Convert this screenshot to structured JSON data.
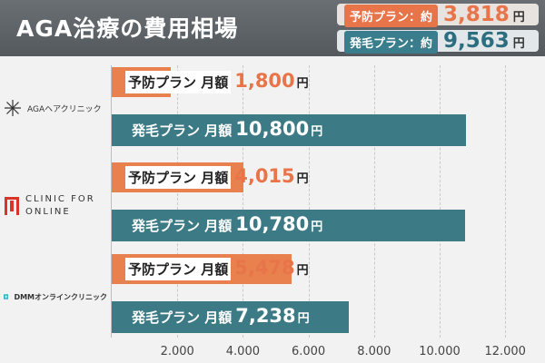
{
  "header": {
    "title": "AGA治療の費用相場",
    "avg_prevent": {
      "label": "予防プラン：約",
      "value": "3,818",
      "unit": "円"
    },
    "avg_hair": {
      "label": "発毛プラン：約",
      "value": "9,563",
      "unit": "円"
    }
  },
  "clinics": [
    {
      "name": "AGAヘアクリニック",
      "logo": [
        "AGAヘアクリニック"
      ]
    },
    {
      "name": "CLINIC FOR ONLINE",
      "logo": [
        "CLINIC FOR",
        "ONLINE"
      ]
    },
    {
      "name": "DMMオンラインクリニック",
      "logo": [
        "DMMオンラインクリニック"
      ]
    }
  ],
  "chart_data": {
    "type": "bar",
    "orientation": "horizontal",
    "categories": [
      "AGAヘアクリニック",
      "CLINIC FOR ONLINE",
      "DMMオンラインクリニック"
    ],
    "series": [
      {
        "name": "予防プラン",
        "values": [
          1800,
          4015,
          5478
        ],
        "labels": [
          "1,800",
          "4,015",
          "5,478"
        ],
        "color": "#e9814f",
        "text_color": "#e8744a",
        "plan_label": "予防プラン 月額"
      },
      {
        "name": "発毛プラン",
        "values": [
          10800,
          10780,
          7238
        ],
        "labels": [
          "10,800",
          "10,780",
          "7,238"
        ],
        "color": "#3c7a86",
        "text_color": "#ffffff",
        "plan_label": "発毛プラン 月額"
      }
    ],
    "unit": "円",
    "xlim": [
      0,
      13000
    ],
    "ticks": [
      2000,
      4000,
      6000,
      8000,
      10000,
      12000
    ],
    "tick_labels": [
      "2.000",
      "4.000",
      "6.000",
      "8.000",
      "10.000",
      "12.000"
    ],
    "grid": true
  }
}
